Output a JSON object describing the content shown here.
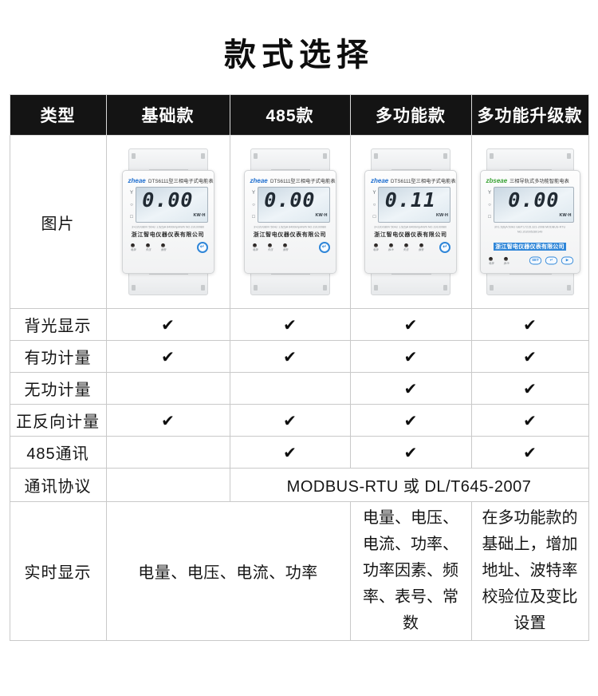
{
  "page": {
    "title": "款式选择"
  },
  "table": {
    "header": [
      "类型",
      "基础款",
      "485款",
      "多功能款",
      "多功能升级款"
    ],
    "image_row": {
      "label": "图片"
    },
    "feature_rows": [
      {
        "label": "背光显示",
        "cells": [
          "✔",
          "✔",
          "✔",
          "✔"
        ]
      },
      {
        "label": "有功计量",
        "cells": [
          "✔",
          "✔",
          "✔",
          "✔"
        ]
      },
      {
        "label": "无功计量",
        "cells": [
          "",
          "",
          "✔",
          "✔"
        ]
      },
      {
        "label": "正反向计量",
        "cells": [
          "✔",
          "✔",
          "✔",
          "✔"
        ]
      },
      {
        "label": "485通讯",
        "cells": [
          "",
          "✔",
          "✔",
          "✔"
        ]
      }
    ],
    "protocol_row": {
      "label": "通讯协议",
      "basic_cell": "",
      "value": "MODBUS-RTU 或 DL/T645-2007"
    },
    "realtime_row": {
      "label": "实时显示",
      "basic_485_cell": "电量、电压、电流、功率",
      "multi_cell": "电量、电压、电流、功率、功率因素、频率、表号、常数",
      "upgrade_cell": "在多功能款的基础上，增加地址、波特率校验位及变比设置"
    }
  },
  "colors": {
    "header_bg": "#141414",
    "check": "#0f0f0f",
    "brand_blue": "#1f6fd0",
    "brand_green": "#3aa335",
    "button_blue": "#2f86d8"
  },
  "meters": [
    {
      "brand": "zheae",
      "brand_color": "#1f6fd0",
      "title": "DTS6111型三相电子式电能表",
      "lcd_value": "0.00",
      "lcd_unit": "KW·H",
      "spec": "3×220/380V 50Hz 1.5(6)A 6400imp/kWh NO.19100980",
      "company": "浙江智电仪器仪表有限公司",
      "indicators": [
        "电源",
        "失压",
        "报警"
      ],
      "button": "↵"
    },
    {
      "brand": "zheae",
      "brand_color": "#1f6fd0",
      "title": "DTS6111型三相电子式电能表",
      "lcd_value": "0.00",
      "lcd_unit": "KW·H",
      "spec": "3×220/380V 50Hz 1.5(6)A 6400imp/kWh NO.19100980",
      "company": "浙江智电仪器仪表有限公司",
      "indicators": [
        "电源",
        "失压",
        "报警"
      ],
      "button": "↵"
    },
    {
      "brand": "zheae",
      "brand_color": "#1f6fd0",
      "title": "DTS6111型三相电子式电能表",
      "lcd_value": "0.11",
      "lcd_unit": "KW·H",
      "spec": "3×220/380V 50Hz 1.5(6)A 6400imp/kWh NO.19100980",
      "company": "浙江智电仪器仪表有限公司",
      "indicators": [
        "电源",
        "脉冲",
        "失压",
        "报警"
      ],
      "button": "↵"
    },
    {
      "brand": "zbseae",
      "brand_color": "#3aa335",
      "title": "三相导轨式多功能智能电表",
      "lcd_value": "0.00",
      "lcd_unit": "KW·H",
      "spec": "3X1.5(6)A 50Hz GB/T17215.321-2008 MODBUS-RTU",
      "spec2": "NO.202005280149",
      "company": "浙江智电仪器仪表有限公司",
      "indicators": [
        "电源",
        "脉冲"
      ],
      "buttons": [
        "SET",
        "↵",
        "▶"
      ]
    }
  ]
}
